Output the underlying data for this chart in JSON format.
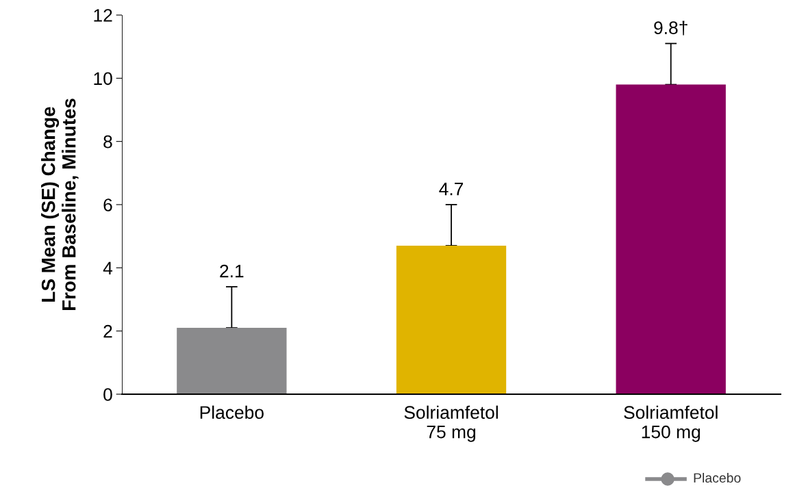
{
  "chart_data": {
    "type": "bar",
    "ylabel": "LS Mean (SE) Change\nFrom Baseline, Minutes",
    "categories": [
      "Placebo",
      "Solriamfetol\n75 mg",
      "Solriamfetol\n150 mg"
    ],
    "values": [
      2.1,
      4.7,
      9.8
    ],
    "colors": [
      "#8a8a8c",
      "#e0b400",
      "#8b0060"
    ],
    "errors": [
      [
        2.1,
        3.4
      ],
      [
        4.7,
        6.0
      ],
      [
        9.8,
        11.1
      ]
    ],
    "value_labels": [
      "2.1",
      "4.7",
      "9.8†"
    ],
    "ylim": [
      0,
      12
    ],
    "yticks": [
      0,
      2,
      4,
      6,
      8,
      10,
      12
    ],
    "grid": false,
    "legend": false,
    "annotations": [
      "Placebo"
    ]
  }
}
